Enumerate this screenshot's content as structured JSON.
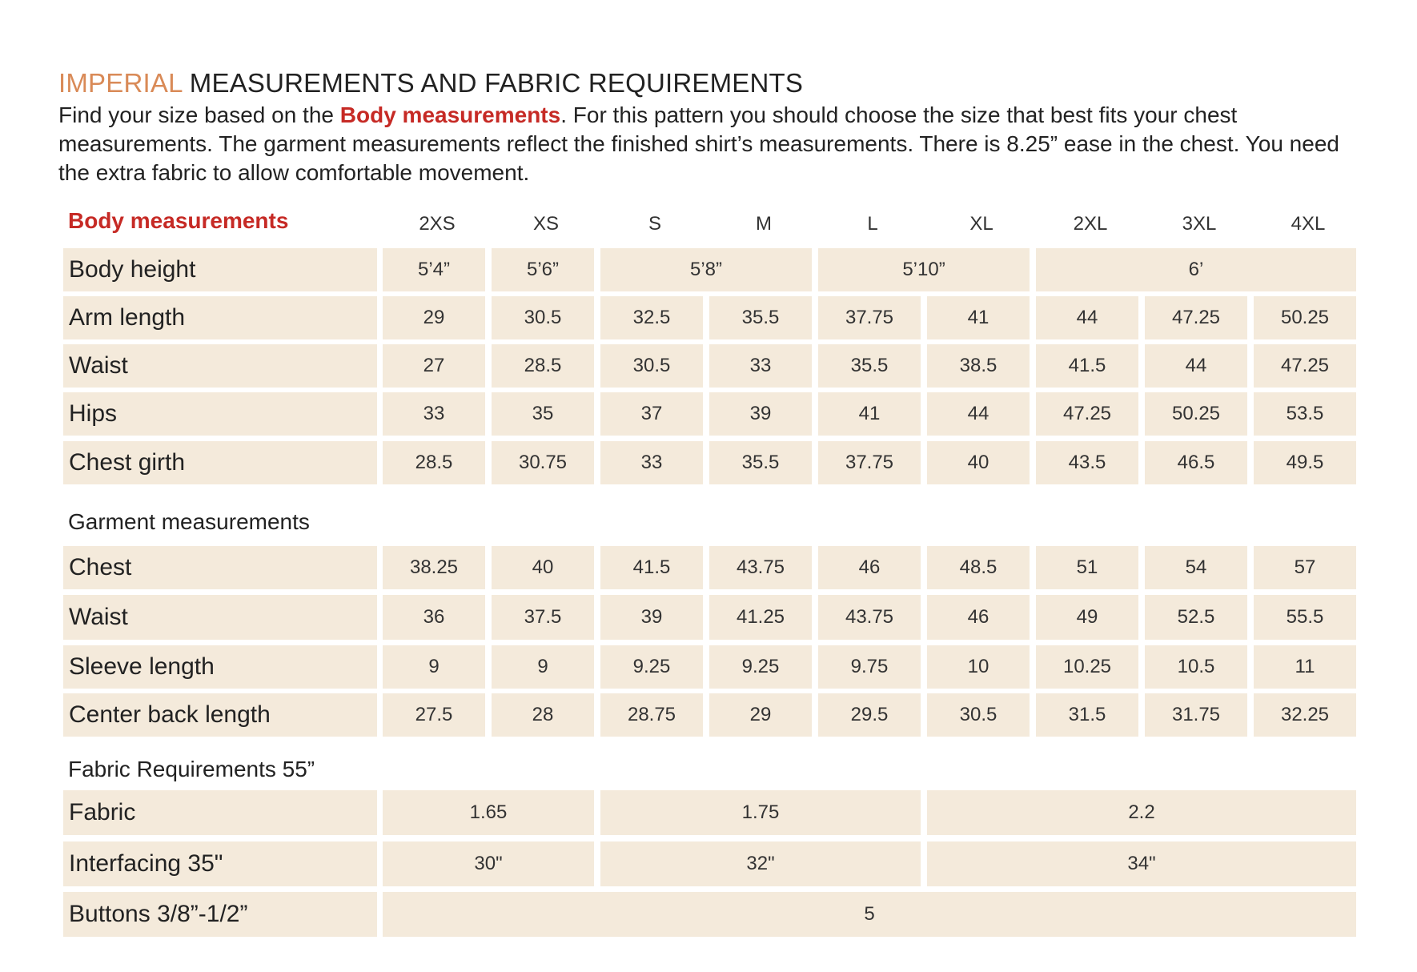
{
  "header": {
    "title_accent": "IMPERIAL",
    "title_rest": "MEASUREMENTS AND FABRIC REQUIREMENTS",
    "intro_before": "Find your size based on the ",
    "intro_bold": "Body measurements",
    "intro_after": ". For this pattern you should choose the size that best fits your chest measurements. The garment measurements reflect the finished shirt’s measurements. There is 8.25” ease in the chest. You need the extra fabric to allow comfortable movement."
  },
  "table": {
    "body_label": "Body measurements",
    "sizes": [
      "2XS",
      "XS",
      "S",
      "M",
      "L",
      "XL",
      "2XL",
      "3XL",
      "4XL"
    ],
    "body_rows": [
      {
        "label": "Body height",
        "cells": [
          {
            "value": "5’4”",
            "span": 1
          },
          {
            "value": "5’6”",
            "span": 1
          },
          {
            "value": "5’8”",
            "span": 2
          },
          {
            "value": "5’10”",
            "span": 2
          },
          {
            "value": "6’",
            "span": 3
          }
        ]
      },
      {
        "label": "Arm length",
        "cells": [
          {
            "value": "29",
            "span": 1
          },
          {
            "value": "30.5",
            "span": 1
          },
          {
            "value": "32.5",
            "span": 1
          },
          {
            "value": "35.5",
            "span": 1
          },
          {
            "value": "37.75",
            "span": 1
          },
          {
            "value": "41",
            "span": 1
          },
          {
            "value": "44",
            "span": 1
          },
          {
            "value": "47.25",
            "span": 1
          },
          {
            "value": "50.25",
            "span": 1
          }
        ]
      },
      {
        "label": "Waist",
        "cells": [
          {
            "value": "27",
            "span": 1
          },
          {
            "value": "28.5",
            "span": 1
          },
          {
            "value": "30.5",
            "span": 1
          },
          {
            "value": "33",
            "span": 1
          },
          {
            "value": "35.5",
            "span": 1
          },
          {
            "value": "38.5",
            "span": 1
          },
          {
            "value": "41.5",
            "span": 1
          },
          {
            "value": "44",
            "span": 1
          },
          {
            "value": "47.25",
            "span": 1
          }
        ]
      },
      {
        "label": "Hips",
        "cells": [
          {
            "value": "33",
            "span": 1
          },
          {
            "value": "35",
            "span": 1
          },
          {
            "value": "37",
            "span": 1
          },
          {
            "value": "39",
            "span": 1
          },
          {
            "value": "41",
            "span": 1
          },
          {
            "value": "44",
            "span": 1
          },
          {
            "value": "47.25",
            "span": 1
          },
          {
            "value": "50.25",
            "span": 1
          },
          {
            "value": "53.5",
            "span": 1
          }
        ]
      },
      {
        "label": "Chest girth",
        "cells": [
          {
            "value": "28.5",
            "span": 1
          },
          {
            "value": "30.75",
            "span": 1
          },
          {
            "value": "33",
            "span": 1
          },
          {
            "value": "35.5",
            "span": 1
          },
          {
            "value": "37.75",
            "span": 1
          },
          {
            "value": "40",
            "span": 1
          },
          {
            "value": "43.5",
            "span": 1
          },
          {
            "value": "46.5",
            "span": 1
          },
          {
            "value": "49.5",
            "span": 1
          }
        ]
      }
    ],
    "garment_label": "Garment measurements",
    "garment_rows": [
      {
        "label": "Chest",
        "cells": [
          {
            "value": "38.25",
            "span": 1
          },
          {
            "value": "40",
            "span": 1
          },
          {
            "value": "41.5",
            "span": 1
          },
          {
            "value": "43.75",
            "span": 1
          },
          {
            "value": "46",
            "span": 1
          },
          {
            "value": "48.5",
            "span": 1
          },
          {
            "value": "51",
            "span": 1
          },
          {
            "value": "54",
            "span": 1
          },
          {
            "value": "57",
            "span": 1
          }
        ]
      },
      {
        "label": "Waist",
        "cells": [
          {
            "value": "36",
            "span": 1
          },
          {
            "value": "37.5",
            "span": 1
          },
          {
            "value": "39",
            "span": 1
          },
          {
            "value": "41.25",
            "span": 1
          },
          {
            "value": "43.75",
            "span": 1
          },
          {
            "value": "46",
            "span": 1
          },
          {
            "value": "49",
            "span": 1
          },
          {
            "value": "52.5",
            "span": 1
          },
          {
            "value": "55.5",
            "span": 1
          }
        ]
      },
      {
        "label": "Sleeve length",
        "cells": [
          {
            "value": "9",
            "span": 1
          },
          {
            "value": "9",
            "span": 1
          },
          {
            "value": "9.25",
            "span": 1
          },
          {
            "value": "9.25",
            "span": 1
          },
          {
            "value": "9.75",
            "span": 1
          },
          {
            "value": "10",
            "span": 1
          },
          {
            "value": "10.25",
            "span": 1
          },
          {
            "value": "10.5",
            "span": 1
          },
          {
            "value": "11",
            "span": 1
          }
        ]
      },
      {
        "label": "Center back length",
        "cells": [
          {
            "value": "27.5",
            "span": 1
          },
          {
            "value": "28",
            "span": 1
          },
          {
            "value": "28.75",
            "span": 1
          },
          {
            "value": "29",
            "span": 1
          },
          {
            "value": "29.5",
            "span": 1
          },
          {
            "value": "30.5",
            "span": 1
          },
          {
            "value": "31.5",
            "span": 1
          },
          {
            "value": "31.75",
            "span": 1
          },
          {
            "value": "32.25",
            "span": 1
          }
        ]
      }
    ],
    "fabric_label": "Fabric Requirements 55”",
    "fabric_rows": [
      {
        "label": "Fabric",
        "cells": [
          {
            "value": "1.65",
            "span": 2
          },
          {
            "value": "1.75",
            "span": 3
          },
          {
            "value": "2.2",
            "span": 4
          }
        ]
      },
      {
        "label": "Interfacing 35\"",
        "cells": [
          {
            "value": "30\"",
            "span": 2
          },
          {
            "value": "32\"",
            "span": 3
          },
          {
            "value": "34\"",
            "span": 4
          }
        ]
      },
      {
        "label": "Buttons 3/8”-1/2”",
        "cells": [
          {
            "value": "5",
            "span": 9
          }
        ]
      }
    ]
  }
}
